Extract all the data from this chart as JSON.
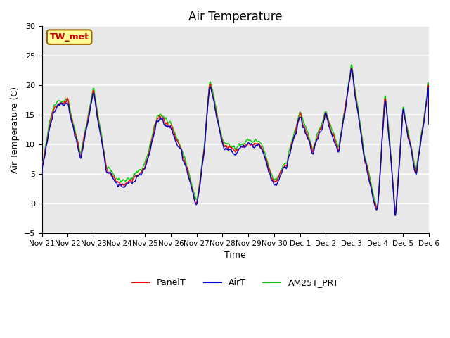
{
  "title": "Air Temperature",
  "xlabel": "Time",
  "ylabel": "Air Temperature (C)",
  "ylim": [
    -5,
    30
  ],
  "annotation": "TW_met",
  "legend": [
    "PanelT",
    "AirT",
    "AM25T_PRT"
  ],
  "line_colors": [
    "#ff0000",
    "#0000cc",
    "#00cc00"
  ],
  "background_color": "#e8e8e8",
  "grid_color": "#ffffff",
  "yticks": [
    -5,
    0,
    5,
    10,
    15,
    20,
    25,
    30
  ],
  "tick_positions": [
    0,
    1,
    2,
    3,
    4,
    5,
    6,
    7,
    8,
    9,
    10,
    11,
    12,
    13,
    14,
    15
  ],
  "tick_labels": [
    "Nov 21",
    "Nov 22",
    "Nov 23",
    "Nov 24",
    "Nov 25",
    "Nov 26",
    "Nov 27",
    "Nov 28",
    "Nov 29",
    "Nov 30",
    "Dec 1",
    "Dec 2",
    "Dec 3",
    "Dec 4",
    "Dec 5",
    "Dec 6"
  ],
  "days": 15,
  "synoptic_x": [
    0,
    0.3,
    1.0,
    1.5,
    2.0,
    2.5,
    3.0,
    3.5,
    4.0,
    4.5,
    5.0,
    5.5,
    6.0,
    6.3,
    6.5,
    7.0,
    7.5,
    8.0,
    8.5,
    9.0,
    9.5,
    10.0,
    10.5,
    11.0,
    11.5,
    12.0,
    12.5,
    13.0,
    13.3,
    13.7,
    14.0,
    14.5,
    15.0
  ],
  "synoptic_y": [
    7.5,
    13,
    19,
    6,
    21,
    4,
    5,
    2,
    8,
    13,
    15,
    6,
    1.5,
    9,
    19,
    12,
    7,
    12,
    8,
    5,
    5,
    17,
    7,
    17,
    7,
    25,
    6,
    0,
    18,
    -3,
    18,
    3,
    22
  ]
}
